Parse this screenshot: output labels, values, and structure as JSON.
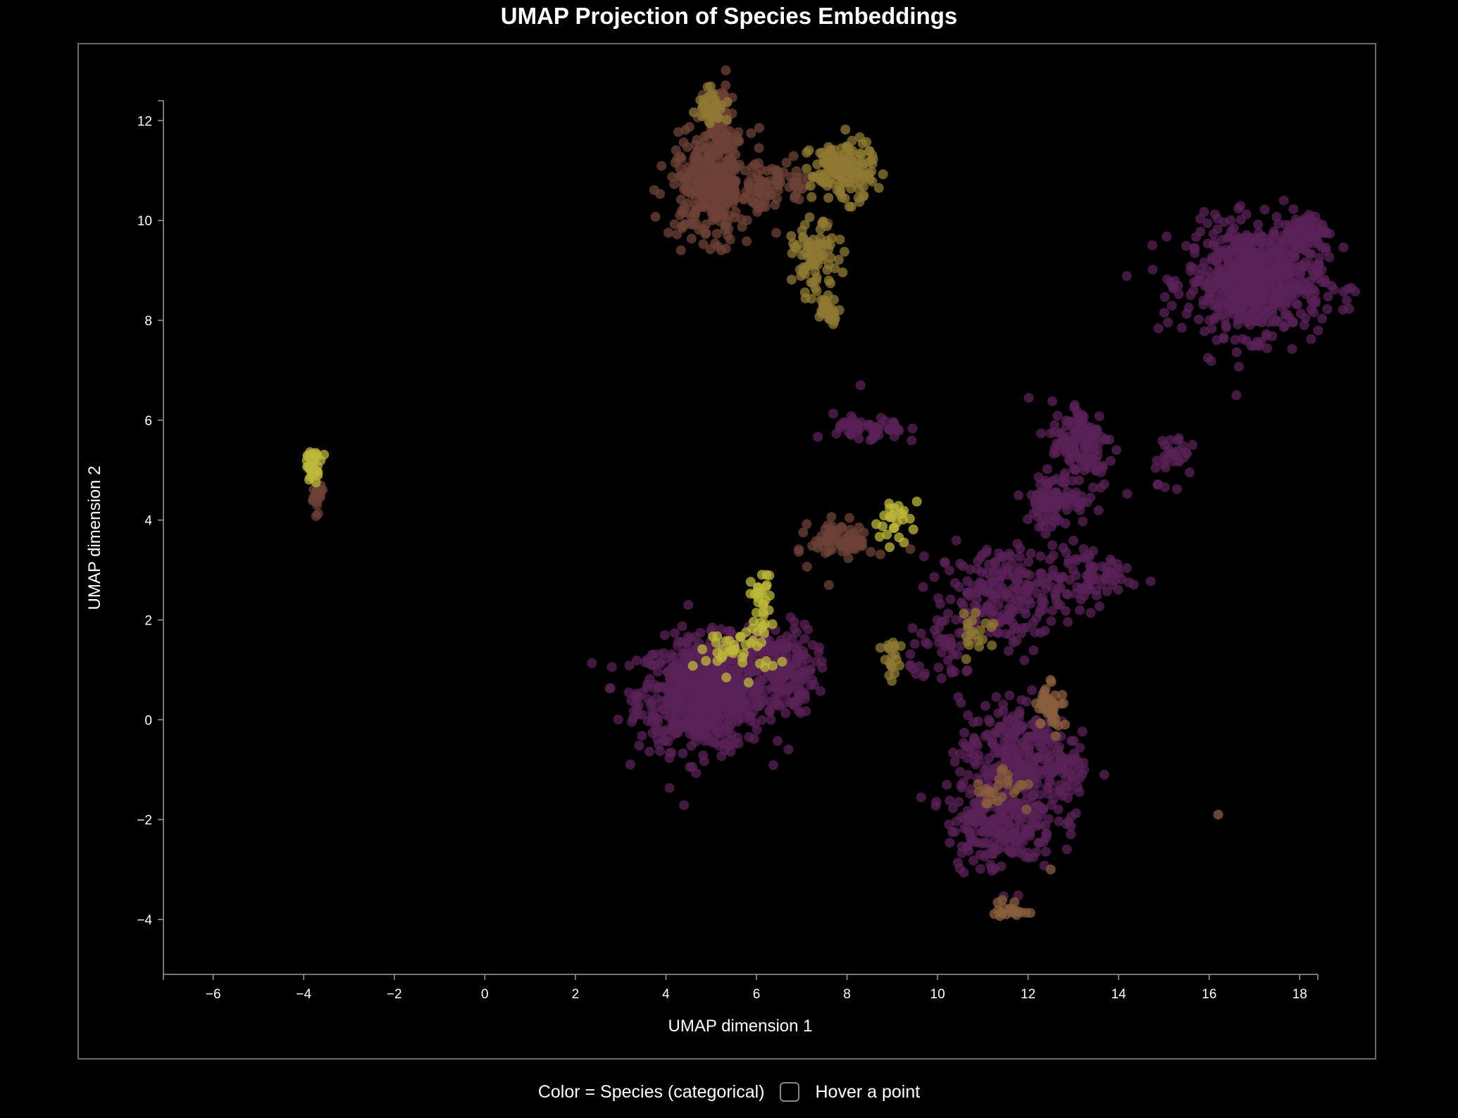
{
  "chart_data": {
    "type": "scatter",
    "title": "UMAP Projection of Species Embeddings",
    "xlabel": "UMAP dimension 1",
    "ylabel": "UMAP dimension 2",
    "xlim": [
      -7.1,
      18.4
    ],
    "ylim": [
      -5.1,
      12.4
    ],
    "xticks": [
      -6,
      -4,
      -2,
      0,
      2,
      4,
      6,
      8,
      10,
      12,
      14,
      16,
      18
    ],
    "yticks": [
      -4,
      -2,
      0,
      2,
      4,
      6,
      8,
      10,
      12
    ],
    "tick_minus": "−",
    "grid": false,
    "background": "#000000",
    "colors": {
      "purple": "#5a2257",
      "brown": "#6e4135",
      "olive": "#8f7a33",
      "yellow": "#bdb83a",
      "tan": "#8a5f3c"
    },
    "clusters": [
      {
        "color": "purple",
        "x": 4.8,
        "y": 0.5,
        "sx": 0.7,
        "sy": 0.55,
        "n": 700
      },
      {
        "color": "purple",
        "x": 6.5,
        "y": 1.0,
        "sx": 0.4,
        "sy": 0.45,
        "n": 200
      },
      {
        "color": "yellow",
        "x": 5.6,
        "y": 1.4,
        "sx": 0.45,
        "sy": 0.25,
        "n": 40
      },
      {
        "color": "yellow",
        "x": 6.1,
        "y": 2.4,
        "sx": 0.12,
        "sy": 0.3,
        "n": 30
      },
      {
        "color": "purple",
        "x": 17.0,
        "y": 8.8,
        "sx": 0.75,
        "sy": 0.55,
        "n": 650
      },
      {
        "color": "purple",
        "x": 18.1,
        "y": 9.8,
        "sx": 0.25,
        "sy": 0.15,
        "n": 60
      },
      {
        "color": "purple",
        "x": 13.2,
        "y": 5.5,
        "sx": 0.35,
        "sy": 0.45,
        "n": 130
      },
      {
        "color": "purple",
        "x": 12.6,
        "y": 4.4,
        "sx": 0.35,
        "sy": 0.25,
        "n": 90
      },
      {
        "color": "purple",
        "x": 11.4,
        "y": 2.5,
        "sx": 0.7,
        "sy": 0.5,
        "n": 200
      },
      {
        "color": "purple",
        "x": 13.3,
        "y": 2.9,
        "sx": 0.5,
        "sy": 0.3,
        "n": 80
      },
      {
        "color": "purple",
        "x": 11.7,
        "y": -0.6,
        "sx": 0.6,
        "sy": 0.5,
        "n": 230
      },
      {
        "color": "purple",
        "x": 11.4,
        "y": -2.0,
        "sx": 0.6,
        "sy": 0.5,
        "n": 250
      },
      {
        "color": "purple",
        "x": 12.8,
        "y": -1.0,
        "sx": 0.25,
        "sy": 0.3,
        "n": 50
      },
      {
        "color": "purple",
        "x": 8.5,
        "y": 5.8,
        "sx": 0.4,
        "sy": 0.15,
        "n": 50
      },
      {
        "color": "purple",
        "x": 15.2,
        "y": 5.3,
        "sx": 0.25,
        "sy": 0.25,
        "n": 30
      },
      {
        "color": "purple",
        "x": 10.2,
        "y": 1.4,
        "sx": 0.4,
        "sy": 0.35,
        "n": 40
      },
      {
        "color": "brown",
        "x": 5.0,
        "y": 10.7,
        "sx": 0.45,
        "sy": 0.55,
        "n": 320
      },
      {
        "color": "brown",
        "x": 5.2,
        "y": 11.9,
        "sx": 0.15,
        "sy": 0.4,
        "n": 60
      },
      {
        "color": "brown",
        "x": 6.3,
        "y": 10.7,
        "sx": 0.5,
        "sy": 0.25,
        "n": 80
      },
      {
        "color": "brown",
        "x": 7.9,
        "y": 3.6,
        "sx": 0.35,
        "sy": 0.2,
        "n": 80
      },
      {
        "color": "brown",
        "x": -3.7,
        "y": 4.5,
        "sx": 0.06,
        "sy": 0.15,
        "n": 25
      },
      {
        "color": "olive",
        "x": 7.9,
        "y": 11.0,
        "sx": 0.35,
        "sy": 0.3,
        "n": 150
      },
      {
        "color": "olive",
        "x": 7.3,
        "y": 9.2,
        "sx": 0.25,
        "sy": 0.35,
        "n": 80
      },
      {
        "color": "olive",
        "x": 7.6,
        "y": 8.2,
        "sx": 0.12,
        "sy": 0.12,
        "n": 35
      },
      {
        "color": "olive",
        "x": 5.0,
        "y": 12.3,
        "sx": 0.15,
        "sy": 0.2,
        "n": 35
      },
      {
        "color": "olive",
        "x": 9.0,
        "y": 1.2,
        "sx": 0.12,
        "sy": 0.2,
        "n": 20
      },
      {
        "color": "olive",
        "x": 10.9,
        "y": 1.8,
        "sx": 0.2,
        "sy": 0.25,
        "n": 20
      },
      {
        "color": "yellow",
        "x": 9.1,
        "y": 4.0,
        "sx": 0.25,
        "sy": 0.2,
        "n": 25
      },
      {
        "color": "yellow",
        "x": -3.8,
        "y": 5.1,
        "sx": 0.1,
        "sy": 0.15,
        "n": 30
      },
      {
        "color": "tan",
        "x": 12.5,
        "y": 0.3,
        "sx": 0.15,
        "sy": 0.25,
        "n": 40
      },
      {
        "color": "tan",
        "x": 11.6,
        "y": -3.8,
        "sx": 0.2,
        "sy": 0.08,
        "n": 20
      },
      {
        "color": "tan",
        "x": 11.4,
        "y": -1.4,
        "sx": 0.3,
        "sy": 0.3,
        "n": 25
      }
    ],
    "outliers": [
      {
        "x": 16.2,
        "y": -1.9,
        "color": "tan"
      },
      {
        "x": 8.3,
        "y": 6.7,
        "color": "purple"
      },
      {
        "x": 7.6,
        "y": 2.7,
        "color": "brown"
      },
      {
        "x": 12.5,
        "y": -3.0,
        "color": "tan"
      },
      {
        "x": 16.6,
        "y": 6.5,
        "color": "purple"
      }
    ]
  },
  "footer": {
    "legend_text": "Color = Species (categorical)",
    "hover_text": "Hover a point"
  }
}
